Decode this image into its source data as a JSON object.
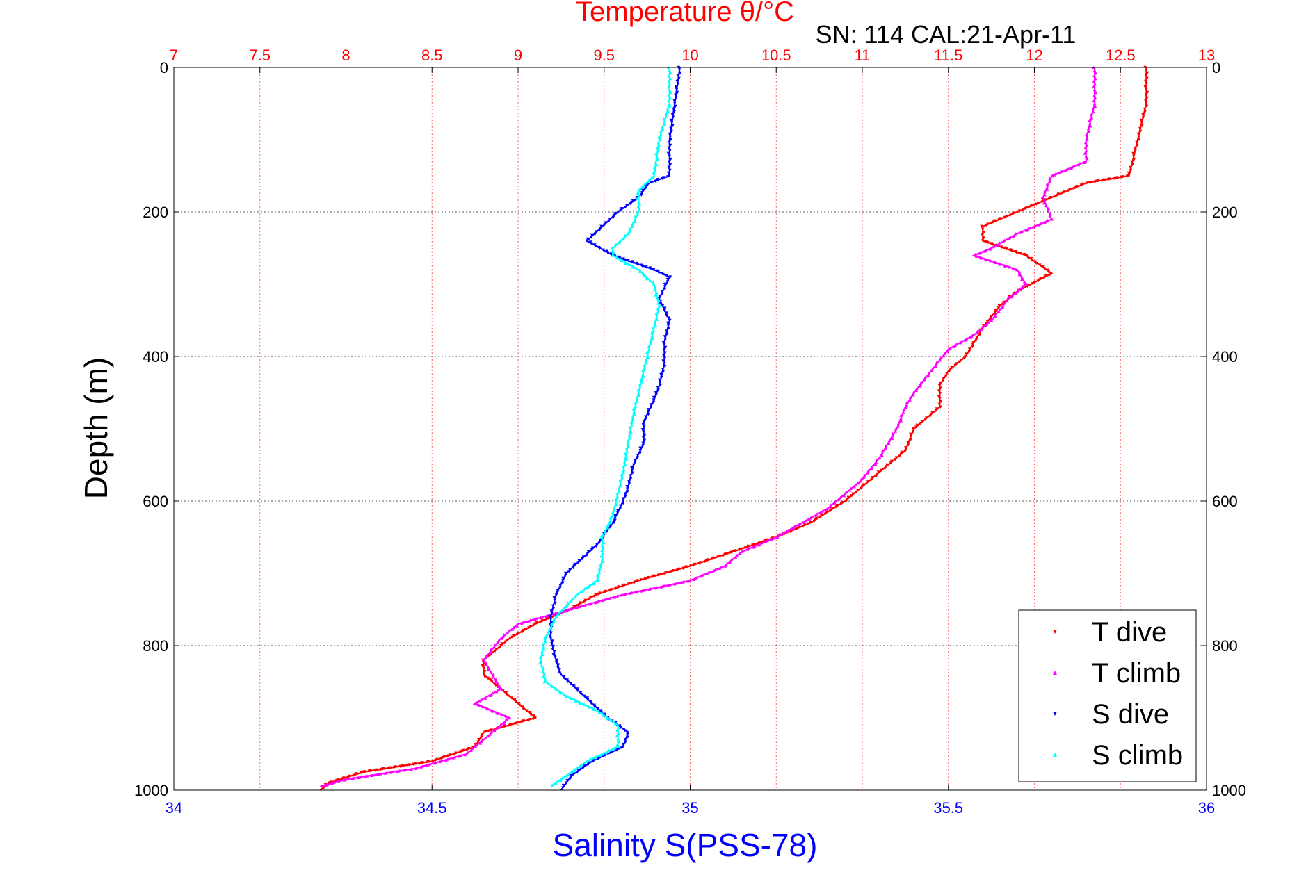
{
  "chart_data": {
    "type": "scatter",
    "title": "SN: 114  CAL:21-Apr-11",
    "top_axis": {
      "label": "Temperature θ/°C",
      "range": [
        7,
        13
      ],
      "ticks": [
        "7",
        "7.5",
        "8",
        "8.5",
        "9",
        "9.5",
        "10",
        "10.5",
        "11",
        "11.5",
        "12",
        "12.5",
        "13"
      ],
      "color": "#ff0000"
    },
    "bottom_axis": {
      "label": "Salinity S(PSS-78)",
      "range": [
        34,
        36
      ],
      "ticks": [
        "34",
        "34.5",
        "35",
        "35.5",
        "36"
      ],
      "color": "#0000ff"
    },
    "y_axis": {
      "label": "Depth (m)",
      "range": [
        0,
        1000
      ],
      "reversed": true,
      "ticks": [
        "0",
        "200",
        "400",
        "600",
        "800",
        "1000"
      ]
    },
    "grid": true,
    "legend_position": "bottom-right",
    "series": [
      {
        "name": "T dive",
        "axis": "top",
        "color": "#ff0000",
        "marker": "triangle-down",
        "points": [
          [
            12.65,
            0
          ],
          [
            12.65,
            50
          ],
          [
            12.6,
            100
          ],
          [
            12.55,
            150
          ],
          [
            12.3,
            160
          ],
          [
            12.1,
            180
          ],
          [
            11.9,
            200
          ],
          [
            11.7,
            220
          ],
          [
            11.7,
            240
          ],
          [
            11.95,
            260
          ],
          [
            12.1,
            285
          ],
          [
            11.9,
            310
          ],
          [
            11.8,
            330
          ],
          [
            11.7,
            360
          ],
          [
            11.65,
            380
          ],
          [
            11.6,
            400
          ],
          [
            11.5,
            420
          ],
          [
            11.45,
            440
          ],
          [
            11.45,
            470
          ],
          [
            11.3,
            500
          ],
          [
            11.25,
            530
          ],
          [
            11.1,
            560
          ],
          [
            11.0,
            580
          ],
          [
            10.9,
            600
          ],
          [
            10.7,
            630
          ],
          [
            10.5,
            650
          ],
          [
            10.25,
            670
          ],
          [
            10.0,
            690
          ],
          [
            9.7,
            710
          ],
          [
            9.45,
            730
          ],
          [
            9.3,
            750
          ],
          [
            9.1,
            770
          ],
          [
            8.95,
            790
          ],
          [
            8.8,
            820
          ],
          [
            8.8,
            840
          ],
          [
            8.95,
            870
          ],
          [
            9.1,
            900
          ],
          [
            8.8,
            920
          ],
          [
            8.75,
            940
          ],
          [
            8.5,
            960
          ],
          [
            8.1,
            975
          ],
          [
            7.9,
            990
          ],
          [
            7.85,
            1000
          ]
        ]
      },
      {
        "name": "T climb",
        "axis": "top",
        "color": "#ff00ff",
        "marker": "triangle-up",
        "points": [
          [
            12.35,
            0
          ],
          [
            12.35,
            50
          ],
          [
            12.3,
            100
          ],
          [
            12.3,
            130
          ],
          [
            12.1,
            150
          ],
          [
            12.05,
            180
          ],
          [
            12.1,
            210
          ],
          [
            11.9,
            230
          ],
          [
            11.75,
            250
          ],
          [
            11.65,
            260
          ],
          [
            11.9,
            280
          ],
          [
            11.95,
            300
          ],
          [
            11.85,
            320
          ],
          [
            11.75,
            350
          ],
          [
            11.65,
            370
          ],
          [
            11.5,
            390
          ],
          [
            11.4,
            420
          ],
          [
            11.3,
            450
          ],
          [
            11.25,
            470
          ],
          [
            11.2,
            500
          ],
          [
            11.1,
            540
          ],
          [
            11.0,
            570
          ],
          [
            10.8,
            610
          ],
          [
            10.5,
            650
          ],
          [
            10.3,
            670
          ],
          [
            10.2,
            690
          ],
          [
            10.0,
            710
          ],
          [
            9.6,
            730
          ],
          [
            9.3,
            750
          ],
          [
            9.0,
            770
          ],
          [
            8.9,
            790
          ],
          [
            8.8,
            820
          ],
          [
            8.9,
            860
          ],
          [
            8.75,
            880
          ],
          [
            8.95,
            900
          ],
          [
            8.8,
            930
          ],
          [
            8.7,
            950
          ],
          [
            8.4,
            970
          ],
          [
            8.0,
            985
          ],
          [
            7.85,
            995
          ]
        ]
      },
      {
        "name": "S dive",
        "axis": "bottom",
        "color": "#0000ff",
        "marker": "triangle-down",
        "points": [
          [
            34.98,
            0
          ],
          [
            34.97,
            50
          ],
          [
            34.96,
            100
          ],
          [
            34.96,
            150
          ],
          [
            34.92,
            160
          ],
          [
            34.9,
            180
          ],
          [
            34.86,
            200
          ],
          [
            34.83,
            220
          ],
          [
            34.8,
            240
          ],
          [
            34.85,
            260
          ],
          [
            34.93,
            280
          ],
          [
            34.96,
            290
          ],
          [
            34.94,
            320
          ],
          [
            34.96,
            350
          ],
          [
            34.95,
            380
          ],
          [
            34.95,
            410
          ],
          [
            34.94,
            440
          ],
          [
            34.93,
            460
          ],
          [
            34.91,
            490
          ],
          [
            34.91,
            520
          ],
          [
            34.89,
            550
          ],
          [
            34.88,
            580
          ],
          [
            34.87,
            600
          ],
          [
            34.85,
            630
          ],
          [
            34.82,
            660
          ],
          [
            34.79,
            680
          ],
          [
            34.76,
            700
          ],
          [
            34.74,
            730
          ],
          [
            34.73,
            760
          ],
          [
            34.73,
            790
          ],
          [
            34.74,
            820
          ],
          [
            34.75,
            840
          ],
          [
            34.78,
            860
          ],
          [
            34.81,
            880
          ],
          [
            34.84,
            900
          ],
          [
            34.88,
            920
          ],
          [
            34.87,
            940
          ],
          [
            34.81,
            960
          ],
          [
            34.77,
            980
          ],
          [
            34.75,
            1000
          ]
        ]
      },
      {
        "name": "S climb",
        "axis": "bottom",
        "color": "#00ffff",
        "marker": "triangle-up",
        "points": [
          [
            34.96,
            0
          ],
          [
            34.96,
            50
          ],
          [
            34.94,
            100
          ],
          [
            34.93,
            150
          ],
          [
            34.9,
            170
          ],
          [
            34.9,
            200
          ],
          [
            34.88,
            230
          ],
          [
            34.85,
            250
          ],
          [
            34.85,
            260
          ],
          [
            34.9,
            280
          ],
          [
            34.93,
            300
          ],
          [
            34.94,
            330
          ],
          [
            34.93,
            360
          ],
          [
            34.92,
            390
          ],
          [
            34.91,
            420
          ],
          [
            34.9,
            450
          ],
          [
            34.89,
            480
          ],
          [
            34.88,
            520
          ],
          [
            34.87,
            560
          ],
          [
            34.86,
            590
          ],
          [
            34.85,
            620
          ],
          [
            34.83,
            650
          ],
          [
            34.83,
            680
          ],
          [
            34.82,
            710
          ],
          [
            34.78,
            730
          ],
          [
            34.74,
            760
          ],
          [
            34.72,
            790
          ],
          [
            34.71,
            820
          ],
          [
            34.72,
            850
          ],
          [
            34.76,
            870
          ],
          [
            34.82,
            890
          ],
          [
            34.86,
            910
          ],
          [
            34.86,
            940
          ],
          [
            34.8,
            960
          ],
          [
            34.76,
            980
          ],
          [
            34.73,
            995
          ]
        ]
      }
    ]
  }
}
